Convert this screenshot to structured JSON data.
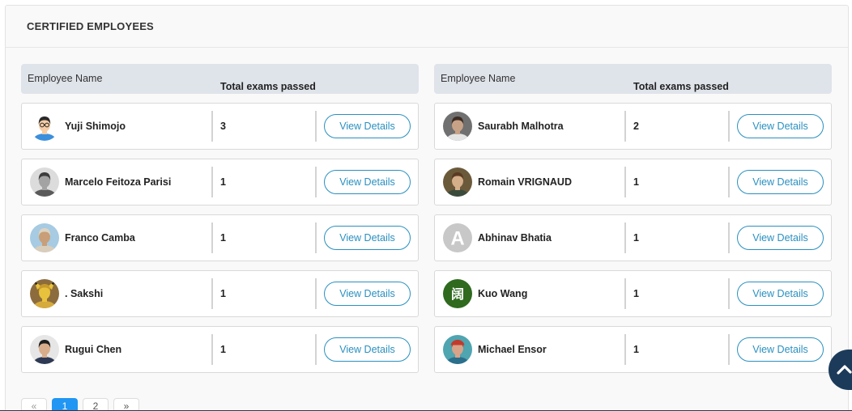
{
  "panel": {
    "title": "CERTIFIED EMPLOYEES"
  },
  "tables": [
    {
      "headers": {
        "name": "Employee Name",
        "exams": "Total exams passed"
      },
      "rows": [
        {
          "name": "Yuji Shimojo",
          "exams": 3,
          "avatar": {
            "icon": "cartoon-avatar-icon",
            "bg": "#ffffff",
            "skin": "#f6cda6",
            "hair": "#2a2a2a",
            "shirt": "#3b8fdc",
            "glasses": true
          }
        },
        {
          "name": "Marcelo Feitoza Parisi",
          "exams": 1,
          "avatar": {
            "icon": "person-photo-icon",
            "bg": "#dcdcdc",
            "skin": "#a3a3a3",
            "hair": "#3d3d3d",
            "shirt": "#5a5a5a"
          }
        },
        {
          "name": "Franco Camba",
          "exams": 1,
          "avatar": {
            "icon": "person-photo-icon",
            "bg": "#a6cbe2",
            "skin": "#c89f78",
            "hair": "#ddd3c2",
            "shirt": "#d9cdbb"
          }
        },
        {
          "name": ". Sakshi",
          "exams": 1,
          "avatar": {
            "icon": "pikachu-avatar-icon",
            "bg": "#8c6c3c",
            "skin": "#e8c23c",
            "hair": "#c79a2c",
            "shirt": "#d6ab3c"
          }
        },
        {
          "name": "Rugui Chen",
          "exams": 1,
          "avatar": {
            "icon": "person-photo-icon",
            "bg": "#e6e6e6",
            "skin": "#d8ad8b",
            "hair": "#1f1f1f",
            "shirt": "#2e3954"
          }
        }
      ]
    },
    {
      "headers": {
        "name": "Employee Name",
        "exams": "Total exams passed"
      },
      "rows": [
        {
          "name": "Saurabh Malhotra",
          "exams": 2,
          "avatar": {
            "icon": "person-photo-icon",
            "bg": "#707070",
            "skin": "#c8a287",
            "hair": "#3c2c23",
            "shirt": "#e4e4e4"
          }
        },
        {
          "name": "Romain VRIGNAUD",
          "exams": 1,
          "avatar": {
            "icon": "person-photo-icon",
            "bg": "#6b5a3a",
            "skin": "#d5ae8a",
            "hair": "#5b3b23",
            "shirt": "#3b4b3b"
          }
        },
        {
          "name": "Abhinav Bhatia",
          "exams": 1,
          "avatar": {
            "icon": "letter-avatar-icon",
            "letter": "A",
            "bg": "#c8c8c8"
          }
        },
        {
          "name": "Kuo Wang",
          "exams": 1,
          "avatar": {
            "icon": "letter-avatar-icon",
            "letter": "阔",
            "bg": "#2f6a1f"
          }
        },
        {
          "name": "Michael Ensor",
          "exams": 1,
          "avatar": {
            "icon": "person-photo-icon",
            "bg": "#4fa5b0",
            "skin": "#d8a389",
            "hair": "#8a4b3b",
            "shirt": "#2b6f8b",
            "hat": "#c23a2c"
          }
        }
      ]
    }
  ],
  "view_details_label": "View Details",
  "pagination": {
    "prev": "«",
    "pages": [
      {
        "label": "1",
        "active": true
      },
      {
        "label": "2",
        "active": false
      }
    ],
    "next": "»"
  },
  "scroll_top": {
    "icon": "chevron-up-icon"
  },
  "colors": {
    "accent": "#2a90c0",
    "header_bg": "#dfe3ea",
    "active_page": "#2196f3",
    "scroll_top_bg": "#1c3b5a"
  }
}
